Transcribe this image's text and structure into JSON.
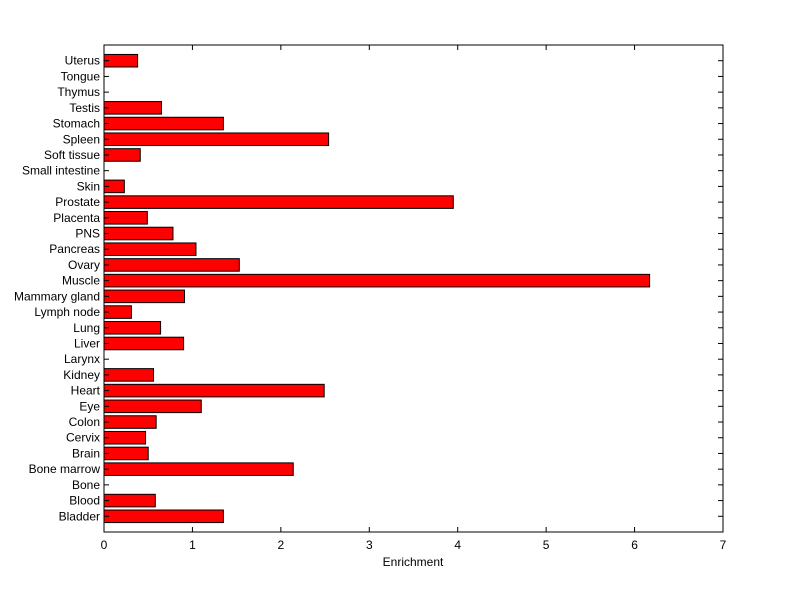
{
  "chart_data": {
    "type": "bar",
    "orientation": "horizontal",
    "title": "",
    "xlabel": "Enrichment",
    "ylabel": "",
    "xlim": [
      0,
      7
    ],
    "xticks": [
      0,
      1,
      2,
      3,
      4,
      5,
      6,
      7
    ],
    "grid": false,
    "legend": "none",
    "bar_color": "#ff0000",
    "bar_edge_color": "#000000",
    "categories": [
      "Bladder",
      "Blood",
      "Bone",
      "Bone marrow",
      "Brain",
      "Cervix",
      "Colon",
      "Eye",
      "Heart",
      "Kidney",
      "Larynx",
      "Liver",
      "Lung",
      "Lymph node",
      "Mammary gland",
      "Muscle",
      "Ovary",
      "Pancreas",
      "PNS",
      "Placenta",
      "Prostate",
      "Skin",
      "Small intestine",
      "Soft tissue",
      "Spleen",
      "Stomach",
      "Testis",
      "Thymus",
      "Tongue",
      "Uterus"
    ],
    "values": [
      1.35,
      0.58,
      0.0,
      2.14,
      0.5,
      0.47,
      0.59,
      1.1,
      2.49,
      0.56,
      0.0,
      0.9,
      0.64,
      0.31,
      0.91,
      6.17,
      1.53,
      1.04,
      0.78,
      0.49,
      3.95,
      0.23,
      0.0,
      0.41,
      2.54,
      1.35,
      0.65,
      0.0,
      0.0,
      0.38
    ]
  }
}
